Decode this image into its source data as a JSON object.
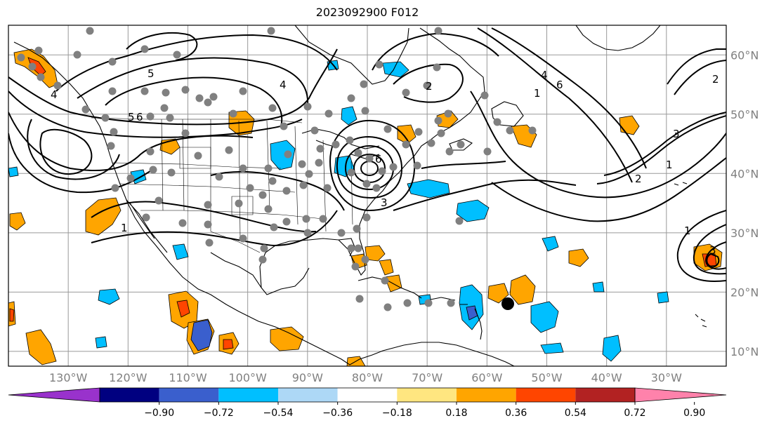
{
  "title": "2023092900 F012",
  "map": {
    "projection": "plate-carree",
    "lon_range": [
      -140,
      -20
    ],
    "lat_range": [
      7.5,
      65
    ],
    "lon_ticks": [
      {
        "lon": -130,
        "label": "130°W"
      },
      {
        "lon": -120,
        "label": "120°W"
      },
      {
        "lon": -110,
        "label": "110°W"
      },
      {
        "lon": -100,
        "label": "100°W"
      },
      {
        "lon": -90,
        "label": "90°W"
      },
      {
        "lon": -80,
        "label": "80°W"
      },
      {
        "lon": -70,
        "label": "70°W"
      },
      {
        "lon": -60,
        "label": "60°W"
      },
      {
        "lon": -50,
        "label": "50°W"
      },
      {
        "lon": -40,
        "label": "40°W"
      },
      {
        "lon": -30,
        "label": "30°W"
      }
    ],
    "lat_ticks": [
      {
        "lat": 60,
        "label": "60°N"
      },
      {
        "lat": 50,
        "label": "50°N"
      },
      {
        "lat": 40,
        "label": "40°N"
      },
      {
        "lat": 30,
        "label": "30°N"
      },
      {
        "lat": 20,
        "label": "20°N"
      },
      {
        "lat": 10,
        "label": "10°N"
      }
    ],
    "grid": true,
    "contour_labels": [
      "1",
      "2",
      "3",
      "4",
      "5",
      "6"
    ],
    "colors": {
      "gridline": "#999999",
      "station_marker": "#808080",
      "target_marker": "#000000",
      "coastline": "#000000"
    }
  },
  "colorbar": {
    "orientation": "horizontal",
    "extend": "both",
    "tick_labels": [
      "−0.90",
      "−0.72",
      "−0.54",
      "−0.36",
      "−0.18",
      "0.18",
      "0.36",
      "0.54",
      "0.72",
      "0.90"
    ],
    "colors": [
      "#9932cc",
      "#000080",
      "#3a5fcd",
      "#00bfff",
      "#add8f6",
      "#ffffff",
      "#ffe680",
      "#ffa500",
      "#ff4500",
      "#b22222",
      "#ff82ab"
    ]
  }
}
